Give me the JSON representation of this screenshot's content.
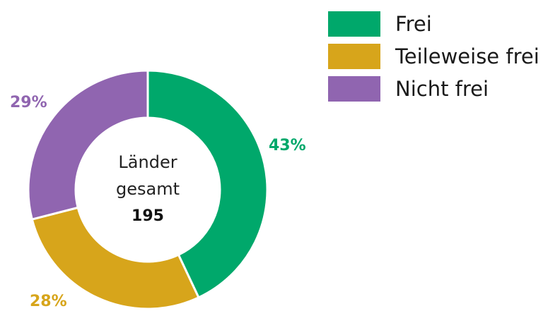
{
  "chart_data": {
    "type": "pie",
    "variant": "donut",
    "categories": [
      "Frei",
      "Teileweise frei",
      "Nicht frei"
    ],
    "values": [
      43,
      28,
      29
    ],
    "value_labels": [
      "43%",
      "28%",
      "29%"
    ],
    "colors": [
      "#00a86b",
      "#d7a51b",
      "#9065b0"
    ],
    "center_text": {
      "line1": "Länder",
      "line2": "gesamt",
      "total": "195"
    },
    "legend_position": "top-right",
    "start_angle": "top",
    "direction": "clockwise"
  }
}
